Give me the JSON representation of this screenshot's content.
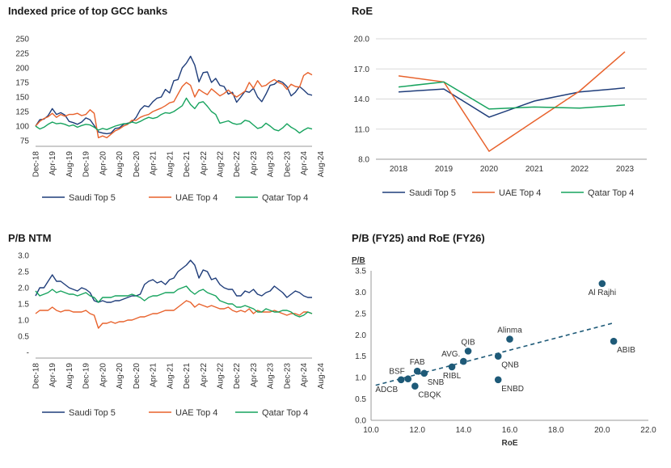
{
  "colors": {
    "saudi": "#1f3d7a",
    "uae": "#e8622c",
    "qatar": "#17a35e",
    "dot": "#1e5a78",
    "trend": "#1e5a78"
  },
  "chart_data": [
    {
      "id": "price",
      "type": "line",
      "title": "Indexed price of top GCC banks",
      "ylim": [
        75,
        250
      ],
      "yticks": [
        250,
        225,
        200,
        175,
        150,
        125,
        100,
        75
      ],
      "x_labels": [
        "Dec-18",
        "Apr-19",
        "Aug-19",
        "Dec-19",
        "Apr-20",
        "Aug-20",
        "Dec-20",
        "Apr-21",
        "Aug-21",
        "Dec-21",
        "Apr-22",
        "Aug-22",
        "Dec-22",
        "Apr-23",
        "Aug-23",
        "Dec-23",
        "Apr-24",
        "Aug-24"
      ],
      "x_labels_every": 4,
      "legend": "bottom",
      "series": [
        {
          "name": "Saudi Top 5",
          "color_key": "saudi",
          "values": [
            100,
            111,
            112,
            118,
            130,
            120,
            123,
            119,
            108,
            106,
            103,
            107,
            114,
            111,
            101,
            90,
            88,
            87,
            88,
            96,
            97,
            103,
            105,
            107,
            115,
            128,
            135,
            133,
            142,
            148,
            150,
            163,
            157,
            178,
            180,
            200,
            208,
            220,
            205,
            176,
            192,
            193,
            175,
            182,
            170,
            168,
            155,
            158,
            141,
            150,
            160,
            158,
            165,
            150,
            142,
            155,
            170,
            172,
            178,
            175,
            168,
            152,
            158,
            168,
            162,
            155,
            153
          ]
        },
        {
          "name": "UAE Top 4",
          "color_key": "uae",
          "values": [
            100,
            108,
            113,
            116,
            122,
            115,
            120,
            117,
            120,
            120,
            122,
            118,
            120,
            128,
            122,
            80,
            83,
            80,
            86,
            92,
            95,
            100,
            103,
            110,
            110,
            115,
            118,
            120,
            125,
            128,
            131,
            135,
            140,
            142,
            155,
            168,
            175,
            170,
            150,
            163,
            158,
            154,
            164,
            158,
            152,
            156,
            162,
            155,
            150,
            155,
            160,
            175,
            165,
            178,
            168,
            170,
            176,
            180,
            175,
            172,
            163,
            172,
            168,
            167,
            187,
            192,
            188
          ]
        },
        {
          "name": "Qatar Top 4",
          "color_key": "qatar",
          "values": [
            100,
            95,
            98,
            103,
            107,
            104,
            105,
            103,
            100,
            102,
            98,
            101,
            103,
            102,
            98,
            93,
            96,
            94,
            97,
            100,
            102,
            104,
            104,
            107,
            105,
            108,
            112,
            115,
            113,
            115,
            120,
            123,
            122,
            125,
            130,
            135,
            148,
            137,
            130,
            140,
            142,
            134,
            125,
            120,
            105,
            107,
            109,
            105,
            103,
            104,
            110,
            108,
            102,
            96,
            98,
            105,
            100,
            94,
            92,
            97,
            104,
            98,
            94,
            88,
            93,
            97,
            95
          ]
        }
      ]
    },
    {
      "id": "roe",
      "type": "line",
      "title": "RoE",
      "categories": [
        "2018",
        "2019",
        "2020",
        "2021",
        "2022",
        "2023"
      ],
      "ylim": [
        8.0,
        20.0
      ],
      "yticks": [
        "20.0",
        "17.0",
        "14.0",
        "11.0",
        "8.0"
      ],
      "legend": "bottom",
      "series": [
        {
          "name": "Saudi Top 5",
          "color_key": "saudi",
          "values": [
            14.7,
            15.0,
            12.2,
            13.8,
            14.7,
            15.1
          ]
        },
        {
          "name": "UAE Top 4",
          "color_key": "uae",
          "values": [
            16.3,
            15.7,
            8.8,
            11.8,
            14.8,
            18.7
          ]
        },
        {
          "name": "Qatar Top 4",
          "color_key": "qatar",
          "values": [
            15.2,
            15.7,
            13.0,
            13.2,
            13.1,
            13.4
          ]
        }
      ]
    },
    {
      "id": "pb",
      "type": "line",
      "title": "P/B NTM",
      "ylim": [
        0,
        3.0
      ],
      "yticks": [
        "3.0",
        "2.5",
        "2.0",
        "1.5",
        "1.0",
        "0.5",
        "-"
      ],
      "x_labels": [
        "Dec-18",
        "Apr-19",
        "Aug-19",
        "Dec-19",
        "Apr-20",
        "Aug-20",
        "Dec-20",
        "Apr-21",
        "Aug-21",
        "Dec-21",
        "Apr-22",
        "Aug-22",
        "Dec-22",
        "Apr-23",
        "Aug-23",
        "Dec-23",
        "Apr-24",
        "Aug-24"
      ],
      "x_labels_every": 4,
      "legend": "bottom",
      "series": [
        {
          "name": "Saudi Top 5",
          "color_key": "saudi",
          "values": [
            1.75,
            2.0,
            2.0,
            2.2,
            2.4,
            2.2,
            2.2,
            2.1,
            2.0,
            1.95,
            1.9,
            2.0,
            1.95,
            1.85,
            1.6,
            1.55,
            1.6,
            1.55,
            1.55,
            1.6,
            1.6,
            1.65,
            1.7,
            1.75,
            1.75,
            1.8,
            2.1,
            2.2,
            2.25,
            2.15,
            2.2,
            2.1,
            2.25,
            2.3,
            2.5,
            2.6,
            2.7,
            2.85,
            2.7,
            2.3,
            2.55,
            2.5,
            2.25,
            2.3,
            2.1,
            2.0,
            1.95,
            1.95,
            1.75,
            1.75,
            1.9,
            1.85,
            1.95,
            1.8,
            1.75,
            1.85,
            1.9,
            2.05,
            1.95,
            1.85,
            1.7,
            1.8,
            1.9,
            1.85,
            1.75,
            1.7,
            1.7
          ]
        },
        {
          "name": "UAE Top 4",
          "color_key": "uae",
          "values": [
            1.2,
            1.3,
            1.3,
            1.3,
            1.4,
            1.3,
            1.25,
            1.3,
            1.3,
            1.25,
            1.25,
            1.25,
            1.3,
            1.2,
            1.15,
            0.75,
            0.9,
            0.9,
            0.95,
            0.9,
            0.95,
            0.95,
            1.0,
            1.0,
            1.05,
            1.1,
            1.1,
            1.15,
            1.2,
            1.2,
            1.25,
            1.3,
            1.3,
            1.3,
            1.4,
            1.5,
            1.6,
            1.55,
            1.4,
            1.5,
            1.45,
            1.4,
            1.45,
            1.4,
            1.35,
            1.35,
            1.4,
            1.3,
            1.25,
            1.3,
            1.25,
            1.35,
            1.2,
            1.3,
            1.25,
            1.25,
            1.25,
            1.3,
            1.25,
            1.2,
            1.15,
            1.2,
            1.2,
            1.15,
            1.25,
            1.25,
            1.2
          ]
        },
        {
          "name": "Qatar Top 4",
          "color_key": "qatar",
          "values": [
            1.9,
            1.75,
            1.8,
            1.85,
            1.95,
            1.85,
            1.9,
            1.85,
            1.8,
            1.8,
            1.75,
            1.8,
            1.85,
            1.75,
            1.7,
            1.55,
            1.7,
            1.7,
            1.7,
            1.75,
            1.75,
            1.75,
            1.75,
            1.8,
            1.75,
            1.7,
            1.6,
            1.7,
            1.75,
            1.75,
            1.8,
            1.85,
            1.85,
            1.85,
            1.95,
            2.0,
            2.05,
            1.9,
            1.8,
            1.9,
            1.95,
            1.85,
            1.8,
            1.75,
            1.6,
            1.55,
            1.5,
            1.5,
            1.4,
            1.4,
            1.45,
            1.4,
            1.35,
            1.25,
            1.25,
            1.35,
            1.3,
            1.25,
            1.25,
            1.3,
            1.3,
            1.25,
            1.15,
            1.1,
            1.15,
            1.25,
            1.2
          ]
        }
      ]
    },
    {
      "id": "scatter",
      "type": "scatter",
      "title": "P/B (FY25) and RoE (FY26)",
      "ylabel": "P/B",
      "xlabel": "RoE",
      "xlim": [
        10.0,
        22.0
      ],
      "ylim": [
        0.0,
        3.5
      ],
      "xticks": [
        "10.0",
        "12.0",
        "14.0",
        "16.0",
        "18.0",
        "20.0",
        "22.0"
      ],
      "yticks": [
        "3.5",
        "3.0",
        "2.5",
        "2.0",
        "1.5",
        "1.0",
        "0.5",
        "0.0"
      ],
      "trendline": {
        "x1": 10.2,
        "y1": 0.82,
        "x2": 20.5,
        "y2": 2.28
      },
      "points": [
        {
          "label": "Al Rajhi",
          "x": 20.0,
          "y": 3.2,
          "label_pos": "below"
        },
        {
          "label": "ABIB",
          "x": 20.5,
          "y": 1.85,
          "label_pos": "below-right"
        },
        {
          "label": "Alinma",
          "x": 16.0,
          "y": 1.9,
          "label_pos": "above"
        },
        {
          "label": "QIB",
          "x": 14.2,
          "y": 1.62,
          "label_pos": "above"
        },
        {
          "label": "QNB",
          "x": 15.5,
          "y": 1.5,
          "label_pos": "below-right"
        },
        {
          "label": "ENBD",
          "x": 15.5,
          "y": 0.95,
          "label_pos": "below-right"
        },
        {
          "label": "AVG.",
          "x": 14.0,
          "y": 1.38,
          "label_pos": "above-left"
        },
        {
          "label": "RIBL",
          "x": 13.5,
          "y": 1.25,
          "label_pos": "below"
        },
        {
          "label": "FAB",
          "x": 12.0,
          "y": 1.15,
          "label_pos": "above"
        },
        {
          "label": "SNB",
          "x": 12.3,
          "y": 1.1,
          "label_pos": "below-right"
        },
        {
          "label": "BSF",
          "x": 11.6,
          "y": 0.97,
          "label_pos": "above-left"
        },
        {
          "label": "ADCB",
          "x": 11.3,
          "y": 0.95,
          "label_pos": "below-left"
        },
        {
          "label": "CBQK",
          "x": 11.9,
          "y": 0.8,
          "label_pos": "below-right"
        }
      ]
    }
  ]
}
